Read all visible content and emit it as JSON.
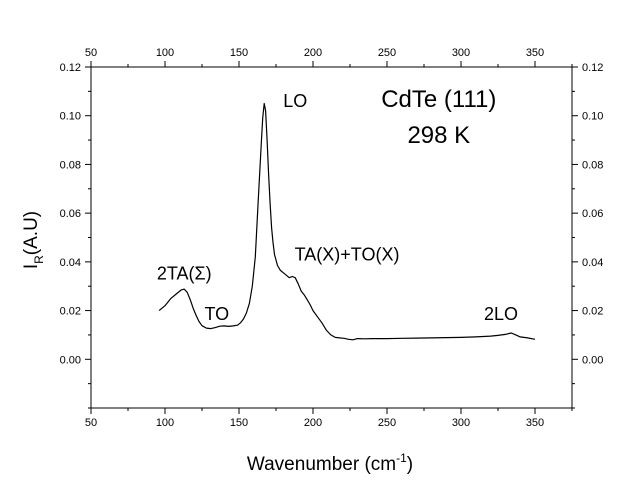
{
  "chart_data": {
    "type": "line",
    "xlabel": "Wavenumber (cm",
    "xlabel_sup": "-1",
    "xlabel_close": ")",
    "ylabel_main": "I",
    "ylabel_sub": "R",
    "ylabel_rest": "(A.U)",
    "xlim": [
      50,
      375
    ],
    "ylim": [
      -0.02,
      0.12
    ],
    "xticks": [
      50,
      100,
      150,
      200,
      250,
      300,
      350
    ],
    "yticks": [
      0.0,
      0.02,
      0.04,
      0.06,
      0.08,
      0.1,
      0.12
    ],
    "ytick_labels": [
      "0.00",
      "0.02",
      "0.04",
      "0.06",
      "0.08",
      "0.10",
      "0.12"
    ],
    "grid": false,
    "mirror_axes": true,
    "annotations": [
      {
        "text": "CdTe (111)",
        "x": 285,
        "y": 0.1035,
        "size": "big"
      },
      {
        "text": "298 K",
        "x": 285,
        "y": 0.0888,
        "size": "big"
      },
      {
        "text": "LO",
        "x": 188,
        "y": 0.1035,
        "size": "normal"
      },
      {
        "text": "2TA(Σ)",
        "x": 113,
        "y": 0.0327,
        "size": "normal"
      },
      {
        "text": "TO",
        "x": 135,
        "y": 0.0162,
        "size": "normal"
      },
      {
        "text": "TA(X)+TO(X)",
        "x": 223,
        "y": 0.0405,
        "size": "normal"
      },
      {
        "text": "2LO",
        "x": 327,
        "y": 0.0162,
        "size": "normal"
      }
    ],
    "series": [
      {
        "color": "#000000",
        "x": [
          96,
          100,
          104,
          108,
          111,
          113,
          115,
          117,
          119,
          121,
          123,
          125,
          128,
          131,
          134,
          137,
          140,
          143,
          146,
          149,
          151,
          153,
          155,
          157,
          159,
          161,
          163,
          165,
          166,
          167,
          168,
          169,
          170,
          171,
          172,
          173,
          174,
          176,
          178,
          180,
          182,
          184,
          186,
          188,
          190,
          192,
          194,
          196,
          198,
          200,
          203,
          206,
          209,
          212,
          215,
          218,
          221,
          224,
          227,
          230,
          235,
          240,
          250,
          260,
          270,
          280,
          290,
          300,
          310,
          320,
          325,
          330,
          334,
          337,
          340,
          345,
          350
        ],
        "y": [
          0.02,
          0.022,
          0.025,
          0.027,
          0.0285,
          0.0288,
          0.0275,
          0.0245,
          0.021,
          0.018,
          0.0155,
          0.0138,
          0.0128,
          0.0126,
          0.013,
          0.0136,
          0.0137,
          0.0135,
          0.0137,
          0.014,
          0.015,
          0.0165,
          0.019,
          0.023,
          0.03,
          0.042,
          0.065,
          0.088,
          0.099,
          0.105,
          0.102,
          0.09,
          0.076,
          0.064,
          0.054,
          0.048,
          0.043,
          0.0385,
          0.0365,
          0.0355,
          0.0345,
          0.0335,
          0.034,
          0.0335,
          0.031,
          0.028,
          0.0265,
          0.0245,
          0.0225,
          0.02,
          0.0175,
          0.015,
          0.012,
          0.01,
          0.009,
          0.0088,
          0.0086,
          0.0082,
          0.008,
          0.0085,
          0.0084,
          0.0085,
          0.0085,
          0.0086,
          0.0087,
          0.0088,
          0.0089,
          0.009,
          0.0092,
          0.0095,
          0.0098,
          0.0102,
          0.0108,
          0.01,
          0.0092,
          0.0088,
          0.0082
        ]
      }
    ]
  }
}
